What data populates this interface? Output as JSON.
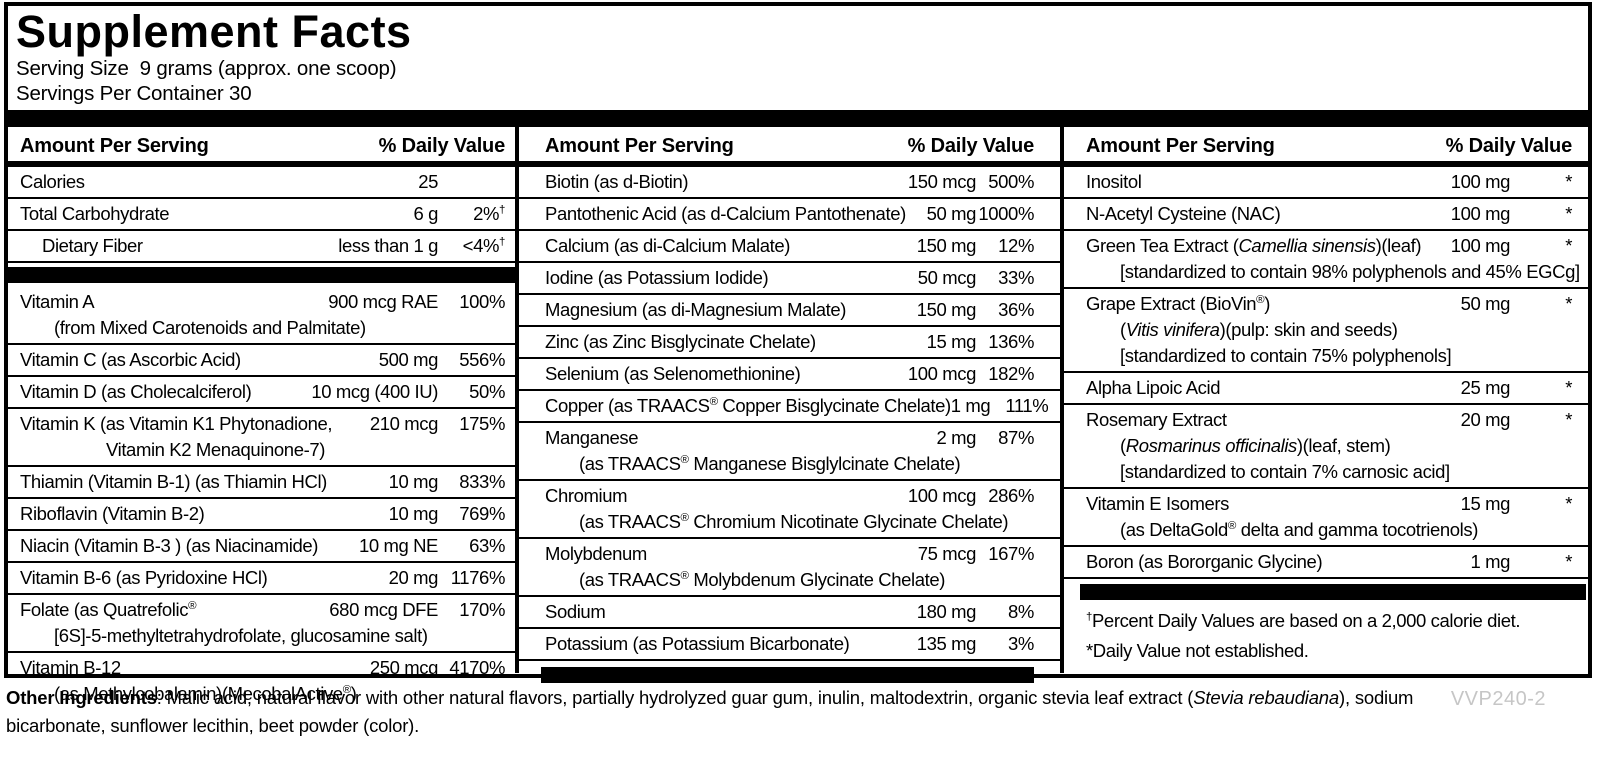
{
  "header": {
    "title": "Supplement Facts",
    "serving_size": "Serving Size  9 grams (approx. one scoop)",
    "servings_per_container": "Servings Per Container 30"
  },
  "columns_header": {
    "amount": "Amount Per Serving",
    "dv": "% Daily Value"
  },
  "colors": {
    "text": "#000000",
    "background": "#ffffff",
    "code_gray": "#c6c6c6"
  },
  "columns": [
    {
      "rows": [
        {
          "name": "Calories",
          "amount": "25",
          "dv": ""
        },
        {
          "name": "Total Carbohydrate",
          "amount": "6 g",
          "dv": "2%†"
        },
        {
          "name": "Dietary Fiber",
          "amount": "less than 1 g",
          "dv": "<4%†",
          "indent": true
        },
        {
          "type": "bar"
        },
        {
          "name": "Vitamin A",
          "amount": "900 mcg RAE",
          "dv": "100%",
          "subs": [
            "(from Mixed Carotenoids and Palmitate)"
          ]
        },
        {
          "name": "Vitamin C (as Ascorbic Acid)",
          "amount": "500 mg",
          "dv": "556%"
        },
        {
          "name": "Vitamin D (as Cholecalciferol)",
          "amount": "10 mcg (400 IU)",
          "dv": "50%"
        },
        {
          "name": "Vitamin K (as Vitamin K1 Phytonadione,",
          "amount": "210 mcg",
          "dv": "175%",
          "subs": [
            "Vitamin K2 Menaquinone-7)"
          ],
          "deep_subs": true
        },
        {
          "name": "Thiamin (Vitamin B-1) (as Thiamin HCl)",
          "amount": "10 mg",
          "dv": "833%"
        },
        {
          "name": "Riboflavin (Vitamin B-2)",
          "amount": "10 mg",
          "dv": "769%"
        },
        {
          "name": "Niacin (Vitamin B-3 ) (as Niacinamide)",
          "amount": "10 mg NE",
          "dv": "63%"
        },
        {
          "name": "Vitamin B-6 (as Pyridoxine HCl)",
          "amount": "20 mg",
          "dv": "1176%"
        },
        {
          "name": "Folate (as Quatrefolic®",
          "amount": "680 mcg DFE",
          "dv": "170%",
          "subs": [
            "[6S]-5-methyltetrahydrofolate, glucosamine salt)"
          ]
        },
        {
          "name": "Vitamin B-12",
          "amount": "250 mcg",
          "dv": "4170%",
          "subs": [
            "(as Methylcobalamin)(MecobalActive®)"
          ],
          "noline": true
        }
      ]
    },
    {
      "rows": [
        {
          "name": "Biotin (as d-Biotin)",
          "amount": "150 mcg",
          "dv": "500%"
        },
        {
          "name": "Pantothenic Acid (as d-Calcium Pantothenate)",
          "amount": "50 mg",
          "dv": "1000%"
        },
        {
          "name": "Calcium (as di-Calcium Malate)",
          "amount": "150 mg",
          "dv": "12%"
        },
        {
          "name": "Iodine (as Potassium Iodide)",
          "amount": "50 mcg",
          "dv": "33%"
        },
        {
          "name": "Magnesium (as di-Magnesium Malate)",
          "amount": "150 mg",
          "dv": "36%"
        },
        {
          "name": "Zinc (as Zinc Bisglycinate Chelate)",
          "amount": "15 mg",
          "dv": "136%"
        },
        {
          "name": "Selenium (as Selenomethionine)",
          "amount": "100 mcg",
          "dv": "182%"
        },
        {
          "name": "Copper (as TRAACS® Copper Bisglycinate Chelate)",
          "amount": "1 mg",
          "dv": "111%"
        },
        {
          "name": "Manganese",
          "amount": "2 mg",
          "dv": "87%",
          "subs": [
            "(as TRAACS® Manganese Bisglylcinate Chelate)"
          ]
        },
        {
          "name": "Chromium",
          "amount": "100 mcg",
          "dv": "286%",
          "subs": [
            "(as TRAACS® Chromium Nicotinate Glycinate Chelate)"
          ]
        },
        {
          "name": "Molybdenum",
          "amount": "75 mcg",
          "dv": "167%",
          "subs": [
            "(as TRAACS® Molybdenum Glycinate Chelate)"
          ]
        },
        {
          "name": "Sodium",
          "amount": "180 mg",
          "dv": "8%"
        },
        {
          "name": "Potassium (as Potassium Bicarbonate)",
          "amount": "135 mg",
          "dv": "3%"
        },
        {
          "type": "bar"
        }
      ]
    },
    {
      "rows": [
        {
          "name": "Inositol",
          "amount": "100 mg",
          "dv": "*"
        },
        {
          "name": "N-Acetyl Cysteine (NAC)",
          "amount": "100 mg",
          "dv": "*"
        },
        {
          "name": "Green Tea Extract (/Camellia sinensis/)(leaf)",
          "amount": "100 mg",
          "dv": "*",
          "subs": [
            "[standardized to contain 98% polyphenols and 45% EGCg]"
          ]
        },
        {
          "name": "Grape Extract (BioVin®)",
          "amount": "50 mg",
          "dv": "*",
          "subs": [
            "(/Vitis vinifera/)(pulp: skin and seeds)",
            "[standardized to contain 75% polyphenols]"
          ]
        },
        {
          "name": "Alpha Lipoic Acid",
          "amount": "25 mg",
          "dv": "*"
        },
        {
          "name": "Rosemary Extract",
          "amount": "20 mg",
          "dv": "*",
          "subs": [
            "(/Rosmarinus officinalis/)(leaf, stem)",
            "[standardized to contain 7% carnosic acid]"
          ]
        },
        {
          "name": "Vitamin E Isomers",
          "amount": "15 mg",
          "dv": "*",
          "subs": [
            "(as DeltaGold® delta and gamma tocotrienols)"
          ]
        },
        {
          "name": "Boron (as Bororganic Glycine)",
          "amount": "1 mg",
          "dv": "*"
        },
        {
          "type": "bar"
        },
        {
          "type": "note",
          "text": "†Percent Daily Values are based on a 2,000 calorie diet."
        },
        {
          "type": "note",
          "text": "*Daily Value not established."
        }
      ]
    }
  ],
  "footer": {
    "other_ingredients_label": "Other Ingredients",
    "other_ingredients_text": ": Malic acid, natural flavor with other natural flavors, partially hydrolyzed guar gum, inulin, maltodextrin, organic stevia leaf extract (/Stevia rebaudiana/), sodium bicarbonate, sunflower lecithin, beet powder (color).",
    "code": "VVP240-2"
  }
}
